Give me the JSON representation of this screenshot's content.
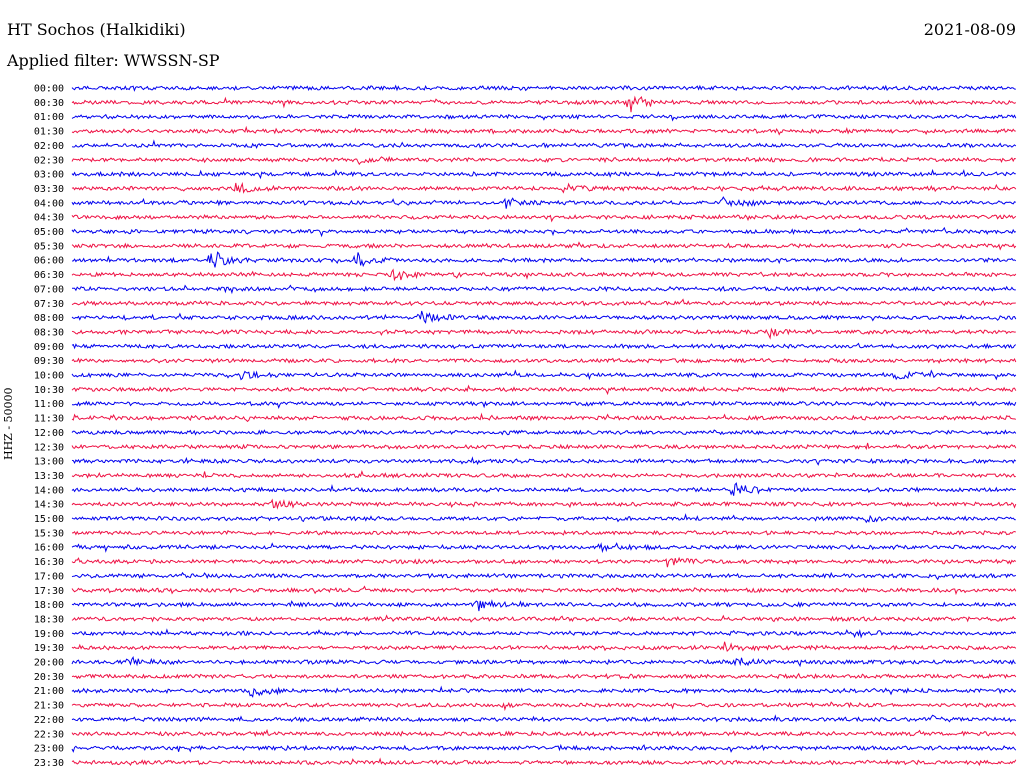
{
  "header": {
    "station": "HT Sochos (Halkidiki)",
    "filter": "Applied filter: WWSSN-SP",
    "date": "2021-08-09"
  },
  "colors": {
    "even_trace": "#0000ee",
    "odd_trace": "#ee1144",
    "background": "#ffffff"
  },
  "chart_data": {
    "type": "line",
    "title": "HT Sochos (Halkidiki)",
    "subtitle": "Applied filter: WWSSN-SP",
    "ylabel": "HHZ - 50000",
    "xlabel": "",
    "grid": false,
    "legend": "none",
    "ytick_labels": [
      "00:00",
      "00:30",
      "01:00",
      "01:30",
      "02:00",
      "02:30",
      "03:00",
      "03:30",
      "04:00",
      "04:30",
      "05:00",
      "05:30",
      "06:00",
      "06:30",
      "07:00",
      "07:30",
      "08:00",
      "08:30",
      "09:00",
      "09:30",
      "10:00",
      "10:30",
      "11:00",
      "11:30",
      "12:00",
      "12:30",
      "13:00",
      "13:30",
      "14:00",
      "14:30",
      "15:00",
      "15:30",
      "16:00",
      "16:30",
      "17:00",
      "17:30",
      "18:00",
      "18:30",
      "19:00",
      "19:30",
      "20:00",
      "20:30",
      "21:00",
      "21:30",
      "22:00",
      "22:30",
      "23:00",
      "23:30"
    ],
    "events": [
      {
        "trace": "00:30",
        "t": 0.59,
        "amp": 1.0
      },
      {
        "trace": "02:30",
        "t": 0.3,
        "amp": 0.6
      },
      {
        "trace": "03:30",
        "t": 0.17,
        "amp": 0.6
      },
      {
        "trace": "03:30",
        "t": 0.52,
        "amp": 0.5
      },
      {
        "trace": "04:00",
        "t": 0.46,
        "amp": 0.55
      },
      {
        "trace": "04:00",
        "t": 0.69,
        "amp": 0.45
      },
      {
        "trace": "06:00",
        "t": 0.145,
        "amp": 1.0
      },
      {
        "trace": "06:00",
        "t": 0.3,
        "amp": 0.7
      },
      {
        "trace": "06:30",
        "t": 0.34,
        "amp": 0.6
      },
      {
        "trace": "08:00",
        "t": 0.37,
        "amp": 0.5
      },
      {
        "trace": "08:30",
        "t": 0.74,
        "amp": 0.45
      },
      {
        "trace": "10:00",
        "t": 0.18,
        "amp": 0.5
      },
      {
        "trace": "10:00",
        "t": 0.87,
        "amp": 0.5
      },
      {
        "trace": "14:00",
        "t": 0.7,
        "amp": 0.9
      },
      {
        "trace": "14:30",
        "t": 0.21,
        "amp": 0.5
      },
      {
        "trace": "15:00",
        "t": 0.84,
        "amp": 0.45
      },
      {
        "trace": "16:00",
        "t": 0.56,
        "amp": 0.45
      },
      {
        "trace": "16:30",
        "t": 0.63,
        "amp": 0.5
      },
      {
        "trace": "18:00",
        "t": 0.43,
        "amp": 0.45
      },
      {
        "trace": "19:00",
        "t": 0.82,
        "amp": 0.4
      },
      {
        "trace": "19:30",
        "t": 0.69,
        "amp": 0.45
      },
      {
        "trace": "20:00",
        "t": 0.06,
        "amp": 0.45
      },
      {
        "trace": "20:00",
        "t": 0.7,
        "amp": 0.45
      },
      {
        "trace": "21:00",
        "t": 0.19,
        "amp": 0.9
      },
      {
        "trace": "22:00",
        "t": 0.91,
        "amp": 0.35
      }
    ]
  }
}
